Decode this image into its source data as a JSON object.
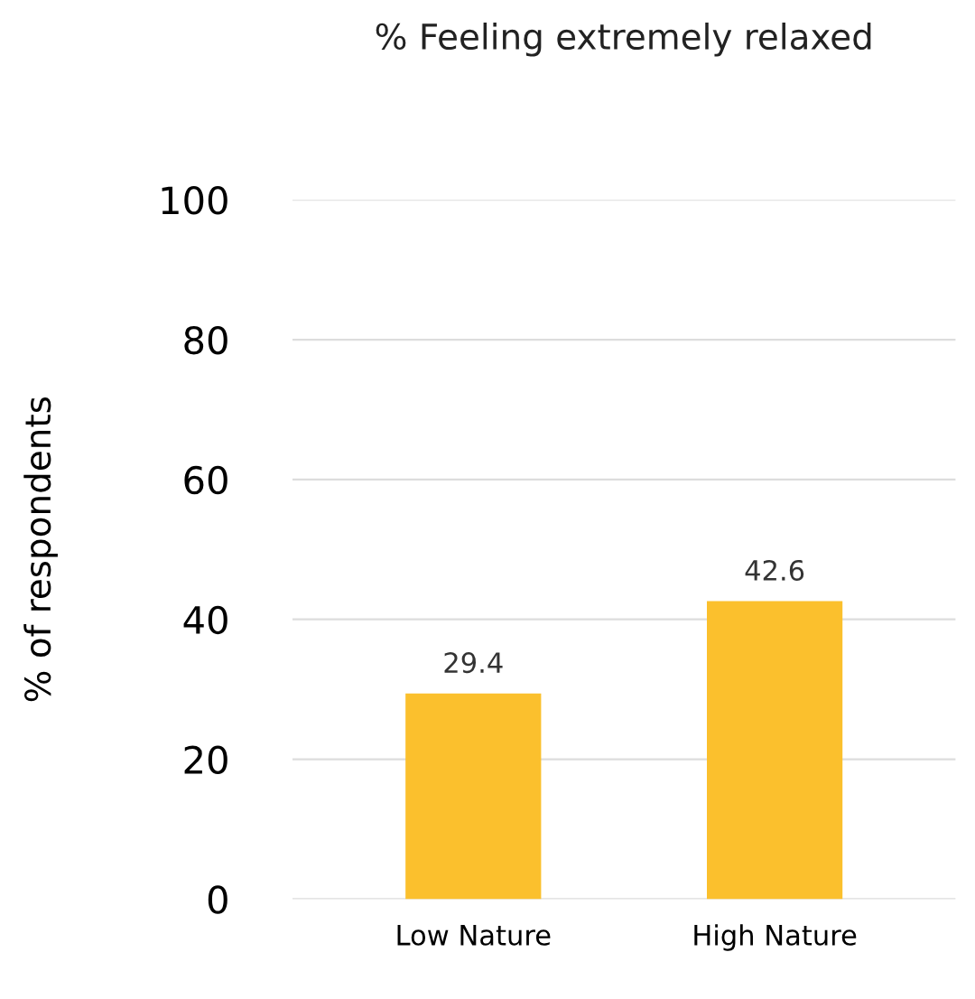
{
  "chart_data": {
    "type": "bar",
    "title": "% Feeling extremely relaxed",
    "ylabel": "% of respondents",
    "categories": [
      "Low Nature",
      "High Nature"
    ],
    "values": [
      29.4,
      42.6
    ],
    "color": "#fbc02d",
    "ylim": [
      0,
      100
    ],
    "yticks": [
      0,
      20,
      40,
      60,
      80,
      100
    ],
    "grid": "y",
    "data_labels": true
  }
}
